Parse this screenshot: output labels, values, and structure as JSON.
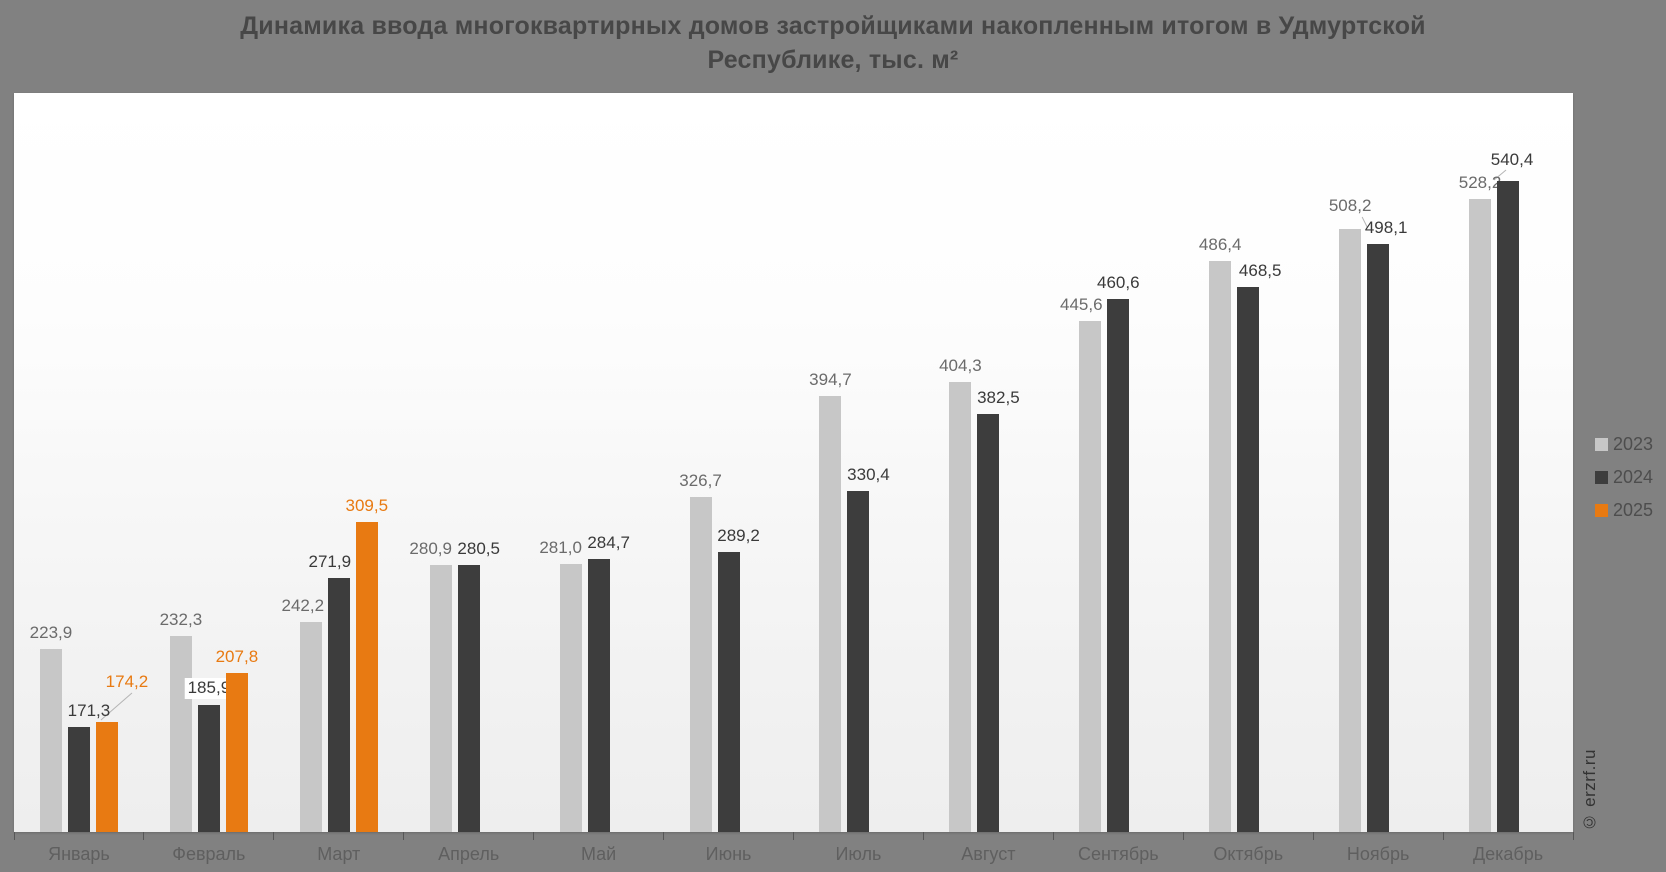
{
  "watermark": "© erzrf.ru",
  "background_color": "#818181",
  "chart_data": {
    "type": "bar",
    "title": "Динамика ввода многоквартирных домов застройщиками накопленным итогом в Удмуртской Республике, тыс. м²",
    "categories": [
      "Январь",
      "Февраль",
      "Март",
      "Апрель",
      "Май",
      "Июнь",
      "Июль",
      "Август",
      "Сентябрь",
      "Октябрь",
      "Ноябрь",
      "Декабрь"
    ],
    "series": [
      {
        "name": "2023",
        "color": "#c7c7c7",
        "label_color": "#6b6b6b",
        "values": [
          223.9,
          232.3,
          242.2,
          280.9,
          281.0,
          326.7,
          394.7,
          404.3,
          445.6,
          486.4,
          508.2,
          528.2
        ]
      },
      {
        "name": "2024",
        "color": "#3d3d3d",
        "label_color": "#3a3a3a",
        "values": [
          171.3,
          185.9,
          271.9,
          280.5,
          284.7,
          289.2,
          330.4,
          382.5,
          460.6,
          468.5,
          498.1,
          540.4
        ]
      },
      {
        "name": "2025",
        "color": "#e87a12",
        "label_color": "#e87a12",
        "values": [
          174.2,
          207.8,
          309.5,
          null,
          null,
          null,
          null,
          null,
          null,
          null,
          null,
          null
        ]
      }
    ],
    "ylim": [
      100,
      600
    ],
    "grid": false,
    "value_labels": true,
    "decimal_separator": ",",
    "legend_position": "right",
    "xlabel": "",
    "ylabel": ""
  }
}
